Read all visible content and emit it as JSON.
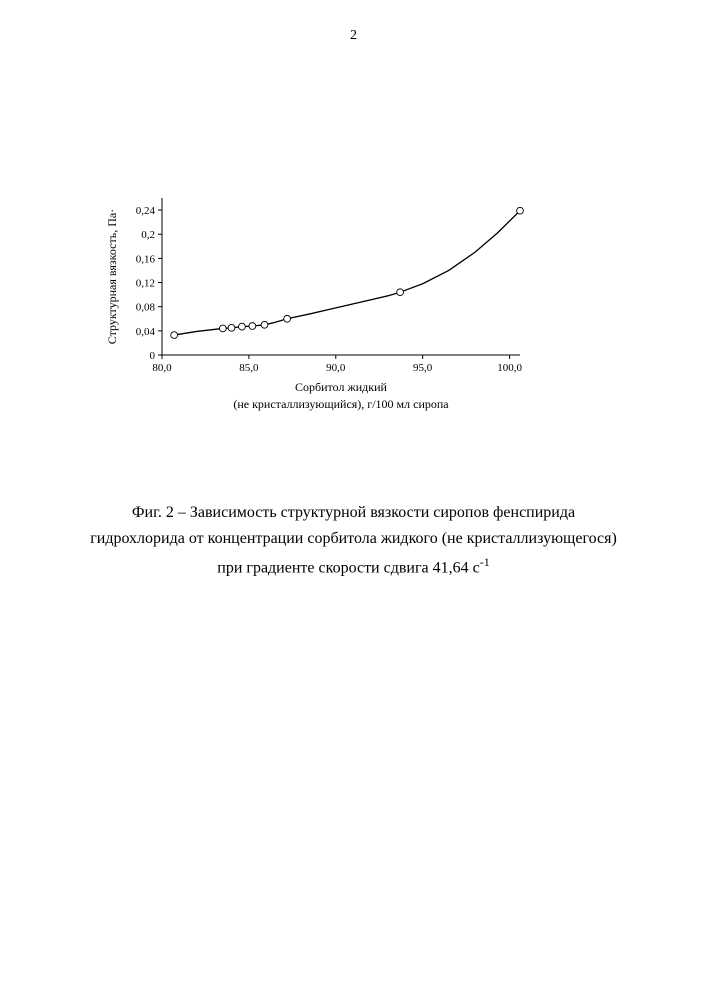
{
  "page_number": "2",
  "chart": {
    "type": "line",
    "y_label": "Структурная вязкость, Па·",
    "x_label_line1": "Сорбитол жидкий",
    "x_label_line2": "(не кристаллизующийся), г/100 мл сиропа",
    "xlim": [
      80.0,
      100.6
    ],
    "ylim": [
      0,
      0.26
    ],
    "x_ticks": [
      80.0,
      85.0,
      90.0,
      95.0,
      100.0
    ],
    "x_tick_labels": [
      "80,0",
      "85,0",
      "90,0",
      "95,0",
      "100,0"
    ],
    "y_ticks": [
      0,
      0.04,
      0.08,
      0.12,
      0.16,
      0.2,
      0.24
    ],
    "y_tick_labels": [
      "0",
      "0,04",
      "0,08",
      "0,12",
      "0,16",
      "0,2",
      "0,24"
    ],
    "axis_color": "#000000",
    "line_color": "#000000",
    "line_width": 1.3,
    "marker_edge_color": "#000000",
    "marker_fill_color": "#ffffff",
    "marker_radius": 3.4,
    "marker_stroke_width": 0.9,
    "tick_font_size": 11,
    "axis_label_font_size": 12,
    "background_color": "#ffffff",
    "data_points": [
      {
        "x": 80.7,
        "y": 0.033
      },
      {
        "x": 83.5,
        "y": 0.044
      },
      {
        "x": 84.0,
        "y": 0.045
      },
      {
        "x": 84.6,
        "y": 0.047
      },
      {
        "x": 85.2,
        "y": 0.048
      },
      {
        "x": 85.9,
        "y": 0.05
      },
      {
        "x": 87.2,
        "y": 0.06
      },
      {
        "x": 93.7,
        "y": 0.104
      },
      {
        "x": 100.6,
        "y": 0.239
      }
    ],
    "curve": [
      {
        "x": 80.7,
        "y": 0.033
      },
      {
        "x": 82.0,
        "y": 0.039
      },
      {
        "x": 83.5,
        "y": 0.044
      },
      {
        "x": 84.0,
        "y": 0.045
      },
      {
        "x": 84.6,
        "y": 0.047
      },
      {
        "x": 85.2,
        "y": 0.048
      },
      {
        "x": 85.9,
        "y": 0.05
      },
      {
        "x": 86.5,
        "y": 0.054
      },
      {
        "x": 87.2,
        "y": 0.06
      },
      {
        "x": 88.5,
        "y": 0.068
      },
      {
        "x": 90.0,
        "y": 0.078
      },
      {
        "x": 91.5,
        "y": 0.088
      },
      {
        "x": 93.0,
        "y": 0.098
      },
      {
        "x": 93.7,
        "y": 0.104
      },
      {
        "x": 95.0,
        "y": 0.118
      },
      {
        "x": 96.5,
        "y": 0.14
      },
      {
        "x": 98.0,
        "y": 0.17
      },
      {
        "x": 99.3,
        "y": 0.202
      },
      {
        "x": 100.6,
        "y": 0.239
      }
    ]
  },
  "caption": {
    "line1": "Фиг. 2 – Зависимость структурной вязкости сиропов фенспирида",
    "line2": "гидрохлорида от концентрации сорбитола жидкого (не кристаллизующегося)",
    "line3_prefix": "при градиенте скорости сдвига 41,64 с",
    "line3_exp": "-1"
  }
}
